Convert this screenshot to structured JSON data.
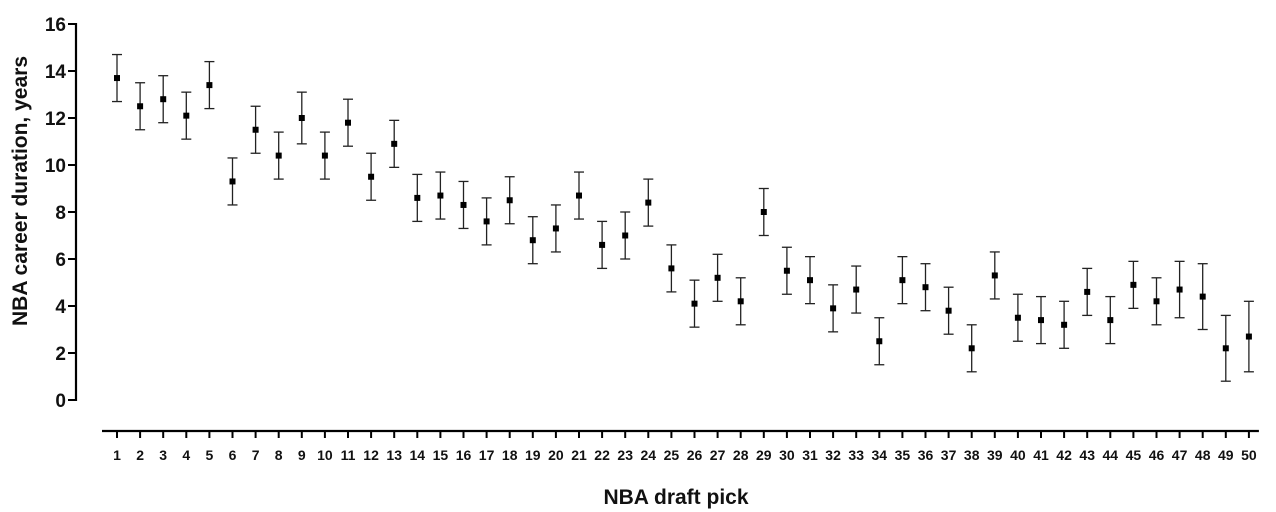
{
  "chart_data": {
    "type": "scatter",
    "xlabel": "NBA draft pick",
    "ylabel": "NBA career duration, years",
    "ylim": [
      0,
      16
    ],
    "yticks": [
      0,
      2,
      4,
      6,
      8,
      10,
      12,
      14,
      16
    ],
    "categories": [
      "1",
      "2",
      "3",
      "4",
      "5",
      "6",
      "7",
      "8",
      "9",
      "10",
      "11",
      "12",
      "13",
      "14",
      "15",
      "16",
      "17",
      "18",
      "19",
      "20",
      "21",
      "22",
      "23",
      "24",
      "25",
      "26",
      "27",
      "28",
      "29",
      "30",
      "31",
      "32",
      "33",
      "34",
      "35",
      "36",
      "37",
      "38",
      "39",
      "40",
      "41",
      "42",
      "43",
      "44",
      "45",
      "46",
      "47",
      "48",
      "49",
      "50"
    ],
    "series": [
      {
        "values": [
          13.7,
          12.5,
          12.8,
          12.1,
          13.4,
          9.3,
          11.5,
          10.4,
          12.0,
          10.4,
          11.8,
          9.5,
          10.9,
          8.6,
          8.7,
          8.3,
          7.6,
          8.5,
          6.8,
          7.3,
          8.7,
          6.6,
          7.0,
          8.4,
          5.6,
          4.1,
          5.2,
          4.2,
          8.0,
          5.5,
          5.1,
          3.9,
          4.7,
          2.5,
          5.1,
          4.8,
          3.8,
          2.2,
          5.3,
          3.5,
          3.4,
          3.2,
          4.6,
          3.4,
          4.9,
          4.2,
          4.7,
          4.4,
          2.2,
          2.7
        ],
        "error": [
          1.0,
          1.0,
          1.0,
          1.0,
          1.0,
          1.0,
          1.0,
          1.0,
          1.1,
          1.0,
          1.0,
          1.0,
          1.0,
          1.0,
          1.0,
          1.0,
          1.0,
          1.0,
          1.0,
          1.0,
          1.0,
          1.0,
          1.0,
          1.0,
          1.0,
          1.0,
          1.0,
          1.0,
          1.0,
          1.0,
          1.0,
          1.0,
          1.0,
          1.0,
          1.0,
          1.0,
          1.0,
          1.0,
          1.0,
          1.0,
          1.0,
          1.0,
          1.0,
          1.0,
          1.0,
          1.0,
          1.2,
          1.4,
          1.4,
          1.5
        ]
      }
    ]
  }
}
